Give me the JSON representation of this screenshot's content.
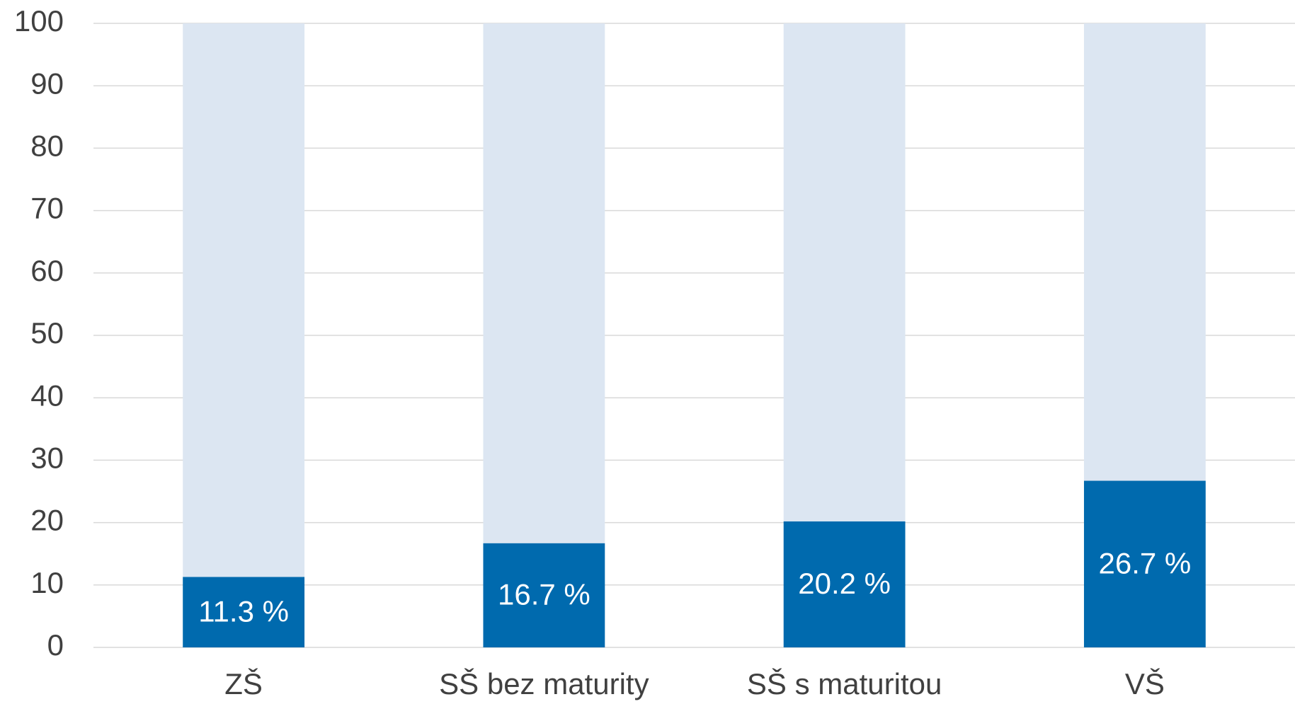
{
  "chart_data": {
    "type": "stacked_bar",
    "categories": [
      "ZŠ",
      "SŠ bez maturity",
      "SŠ s maturitou",
      "VŠ"
    ],
    "series": [
      {
        "color": "#006aae",
        "values": [
          11.3,
          16.7,
          20.2,
          26.7
        ],
        "value_labels": [
          "11.3 %",
          "16.7 %",
          "20.2 %",
          "26.7 %"
        ]
      },
      {
        "color": "#dce6f2",
        "values": [
          88.7,
          83.3,
          79.8,
          73.3
        ]
      }
    ],
    "ylim": [
      0,
      100
    ],
    "yticks": [
      0,
      10,
      20,
      30,
      40,
      50,
      60,
      70,
      80,
      90,
      100
    ],
    "grid": true
  }
}
